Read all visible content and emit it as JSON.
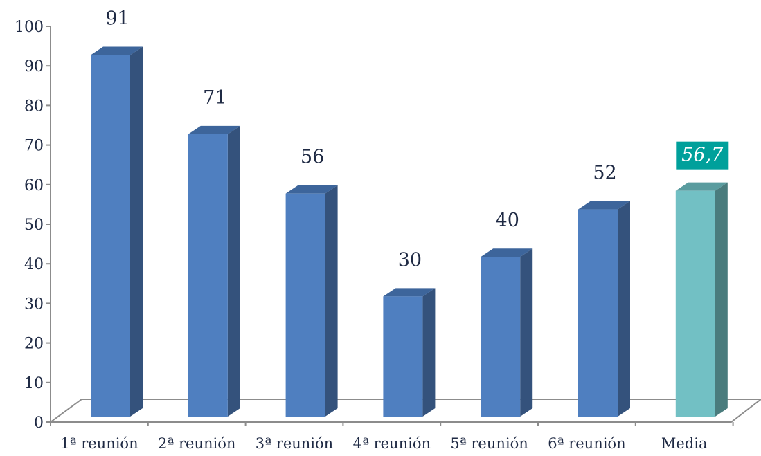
{
  "chart_data": {
    "type": "bar",
    "categories": [
      "1ª reunión",
      "2ª reunión",
      "3ª reunión",
      "4ª reunión",
      "5ª reunión",
      "6ª reunión",
      "Media"
    ],
    "values": [
      91,
      71,
      56,
      30,
      40,
      52,
      56.7
    ],
    "value_labels": [
      "91",
      "71",
      "56",
      "30",
      "40",
      "52",
      "56,7"
    ],
    "highlight_index": 6,
    "ylim": [
      0,
      100
    ],
    "yticks": [
      "0",
      "10",
      "20",
      "30",
      "40",
      "50",
      "60",
      "70",
      "80",
      "90",
      "100"
    ],
    "grid": false,
    "legend": "none",
    "colors": {
      "bar_front": "#4f7fc0",
      "bar_side": "#34527c",
      "bar_top": "#3d659b",
      "highlight_front": "#72c0c4",
      "highlight_side": "#4a7c7d",
      "highlight_top": "#5a9c9f",
      "highlight_label_bg": "#00a09b",
      "floor_line": "#8c8c8c",
      "axis": "#8c8c8c",
      "text": "#1f2a44"
    }
  }
}
